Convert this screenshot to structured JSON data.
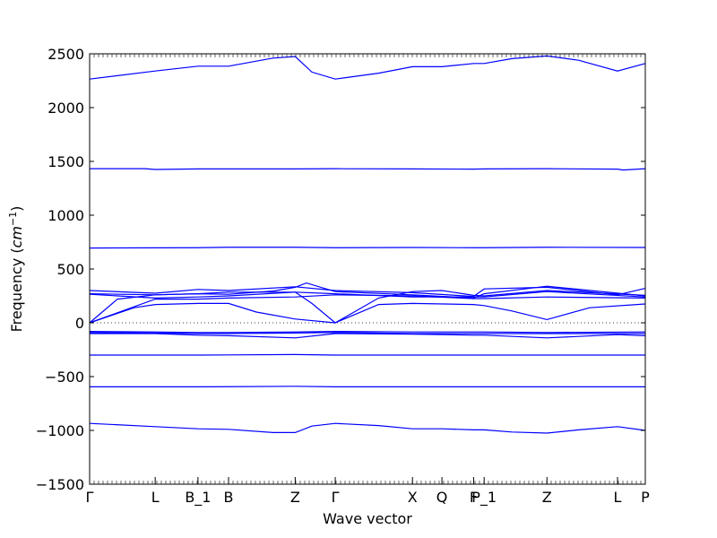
{
  "chart_data": {
    "type": "line",
    "title": "",
    "xlabel": "Wave vector",
    "ylabel": "Frequency (cm⁻¹)",
    "ylabel_prefix": "Frequency (",
    "ylabel_unit": "cm",
    "ylabel_exponent": "−1",
    "ylabel_suffix": ")",
    "xlim": [
      0,
      1
    ],
    "ylim": [
      -1500,
      2500
    ],
    "yticks": [
      -1500,
      -1000,
      -500,
      0,
      500,
      1000,
      1500,
      2000,
      2500
    ],
    "ytick_labels": [
      "−1500",
      "−1000",
      "−500",
      "0",
      "500",
      "1000",
      "1500",
      "2000",
      "2500"
    ],
    "xticks": [
      {
        "x": 0.0,
        "label": "Γ"
      },
      {
        "x": 0.118,
        "label": "L"
      },
      {
        "x": 0.195,
        "label": "B_1"
      },
      {
        "x": 0.25,
        "label": "B"
      },
      {
        "x": 0.37,
        "label": "Z"
      },
      {
        "x": 0.442,
        "label": "Γ"
      },
      {
        "x": 0.581,
        "label": "X"
      },
      {
        "x": 0.634,
        "label": "Q"
      },
      {
        "x": 0.691,
        "label": "F"
      },
      {
        "x": 0.71,
        "label": "P_1"
      },
      {
        "x": 0.823,
        "label": "Z"
      },
      {
        "x": 0.95,
        "label": "L"
      },
      {
        "x": 1.0,
        "label": "P"
      }
    ],
    "zero_line": true,
    "grid": false,
    "line_color": "#0000ff",
    "series": [
      {
        "x": [
          0,
          0.118,
          0.195,
          0.25,
          0.33,
          0.37,
          0.4,
          0.442,
          0.52,
          0.581,
          0.634,
          0.691,
          0.71,
          0.76,
          0.823,
          0.88,
          0.95,
          1.0
        ],
        "values": [
          2265,
          2340,
          2385,
          2385,
          2460,
          2475,
          2330,
          2265,
          2320,
          2380,
          2380,
          2410,
          2410,
          2455,
          2480,
          2440,
          2340,
          2410
        ]
      },
      {
        "x": [
          0,
          0.1,
          0.118,
          0.195,
          0.25,
          0.37,
          0.442,
          0.581,
          0.691,
          0.71,
          0.823,
          0.95,
          0.96,
          1.0
        ],
        "values": [
          1432,
          1432,
          1425,
          1430,
          1430,
          1430,
          1432,
          1430,
          1428,
          1430,
          1432,
          1428,
          1420,
          1432
        ]
      },
      {
        "x": [
          0,
          0.195,
          0.25,
          0.37,
          0.442,
          0.581,
          0.691,
          0.71,
          0.823,
          1.0
        ],
        "values": [
          695,
          698,
          702,
          702,
          698,
          700,
          698,
          698,
          702,
          700
        ]
      },
      {
        "x": [
          0,
          0.118,
          0.195,
          0.25,
          0.37,
          0.442,
          0.581,
          0.691,
          0.71,
          0.823,
          0.95,
          1.0
        ],
        "values": [
          300,
          275,
          310,
          300,
          335,
          300,
          280,
          245,
          315,
          330,
          260,
          320
        ]
      },
      {
        "x": [
          0,
          0.118,
          0.195,
          0.25,
          0.33,
          0.37,
          0.39,
          0.442,
          0.581,
          0.691,
          0.71,
          0.823,
          1.0
        ],
        "values": [
          270,
          260,
          270,
          265,
          295,
          330,
          370,
          290,
          260,
          230,
          270,
          340,
          250
        ]
      },
      {
        "x": [
          0,
          0.118,
          0.195,
          0.25,
          0.37,
          0.442,
          0.581,
          0.691,
          0.71,
          0.823,
          1.0
        ],
        "values": [
          265,
          230,
          240,
          250,
          285,
          270,
          240,
          240,
          240,
          290,
          240
        ]
      },
      {
        "x": [
          0,
          0.118,
          0.195,
          0.25,
          0.37,
          0.442,
          0.581,
          0.691,
          0.71,
          0.823,
          1.0
        ],
        "values": [
          0,
          220,
          220,
          230,
          240,
          260,
          250,
          225,
          225,
          240,
          230
        ]
      },
      {
        "x": [
          0,
          0.08,
          0.118,
          0.195,
          0.25,
          0.3,
          0.37,
          0.442,
          0.52,
          0.581,
          0.691,
          0.71,
          0.76,
          0.823,
          0.9,
          1.0
        ],
        "values": [
          0,
          140,
          170,
          180,
          180,
          100,
          35,
          0,
          170,
          180,
          170,
          160,
          110,
          30,
          140,
          175
        ]
      },
      {
        "x": [
          0,
          0.05,
          0.118,
          0.195,
          0.25,
          0.37,
          0.4,
          0.442,
          0.52,
          0.581,
          0.634,
          0.691,
          0.71,
          0.823,
          1.0
        ],
        "values": [
          0,
          220,
          260,
          270,
          285,
          285,
          180,
          0,
          230,
          290,
          300,
          255,
          250,
          300,
          255
        ]
      },
      {
        "x": [
          0,
          0.118,
          0.195,
          0.25,
          0.37,
          0.442,
          0.581,
          0.691,
          0.71,
          0.823,
          1.0
        ],
        "values": [
          -80,
          -85,
          -90,
          -90,
          -85,
          -80,
          -85,
          -85,
          -85,
          -90,
          -85
        ]
      },
      {
        "x": [
          0,
          0.118,
          0.195,
          0.25,
          0.37,
          0.442,
          0.581,
          0.691,
          0.71,
          0.823,
          1.0
        ],
        "values": [
          -90,
          -95,
          -100,
          -100,
          -95,
          -90,
          -100,
          -100,
          -100,
          -100,
          -100
        ]
      },
      {
        "x": [
          0,
          0.118,
          0.195,
          0.25,
          0.37,
          0.442,
          0.581,
          0.691,
          0.71,
          0.823,
          0.95,
          1.0
        ],
        "values": [
          -100,
          -100,
          -115,
          -120,
          -140,
          -100,
          -105,
          -115,
          -115,
          -140,
          -110,
          -120
        ]
      },
      {
        "x": [
          0,
          0.2,
          0.37,
          0.442,
          0.7,
          1.0
        ],
        "values": [
          -300,
          -300,
          -295,
          -300,
          -300,
          -300
        ]
      },
      {
        "x": [
          0,
          0.2,
          0.37,
          0.442,
          0.7,
          1.0
        ],
        "values": [
          -595,
          -595,
          -590,
          -595,
          -595,
          -595
        ]
      },
      {
        "x": [
          0,
          0.118,
          0.195,
          0.25,
          0.33,
          0.37,
          0.4,
          0.442,
          0.52,
          0.581,
          0.634,
          0.691,
          0.71,
          0.76,
          0.823,
          0.88,
          0.95,
          1.0
        ],
        "values": [
          -935,
          -965,
          -985,
          -990,
          -1020,
          -1020,
          -960,
          -935,
          -955,
          -985,
          -985,
          -995,
          -995,
          -1015,
          -1025,
          -995,
          -965,
          -1000
        ]
      }
    ]
  }
}
